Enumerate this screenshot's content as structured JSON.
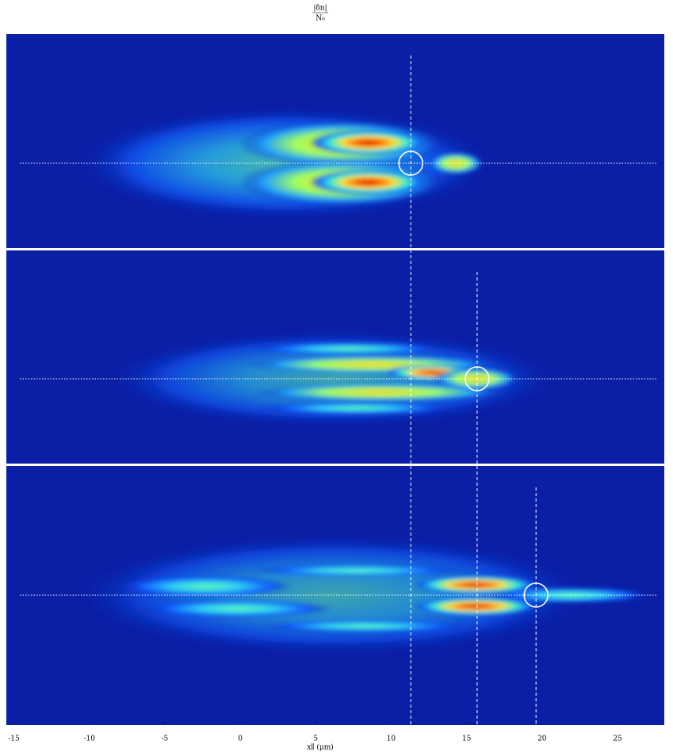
{
  "chart_data": {
    "type": "heatmap",
    "title": {
      "numerator": "|δn|",
      "denominator": "N₀"
    },
    "x_label": "x∥ (μm)",
    "xlim": [
      -15.5,
      28.1
    ],
    "xticks": [
      -15,
      -10,
      -5,
      0,
      5,
      10,
      15,
      20,
      25
    ],
    "panels": [
      {
        "marker_x": 11.3
      },
      {
        "marker_x": 15.7
      },
      {
        "marker_x": 19.6
      }
    ]
  }
}
